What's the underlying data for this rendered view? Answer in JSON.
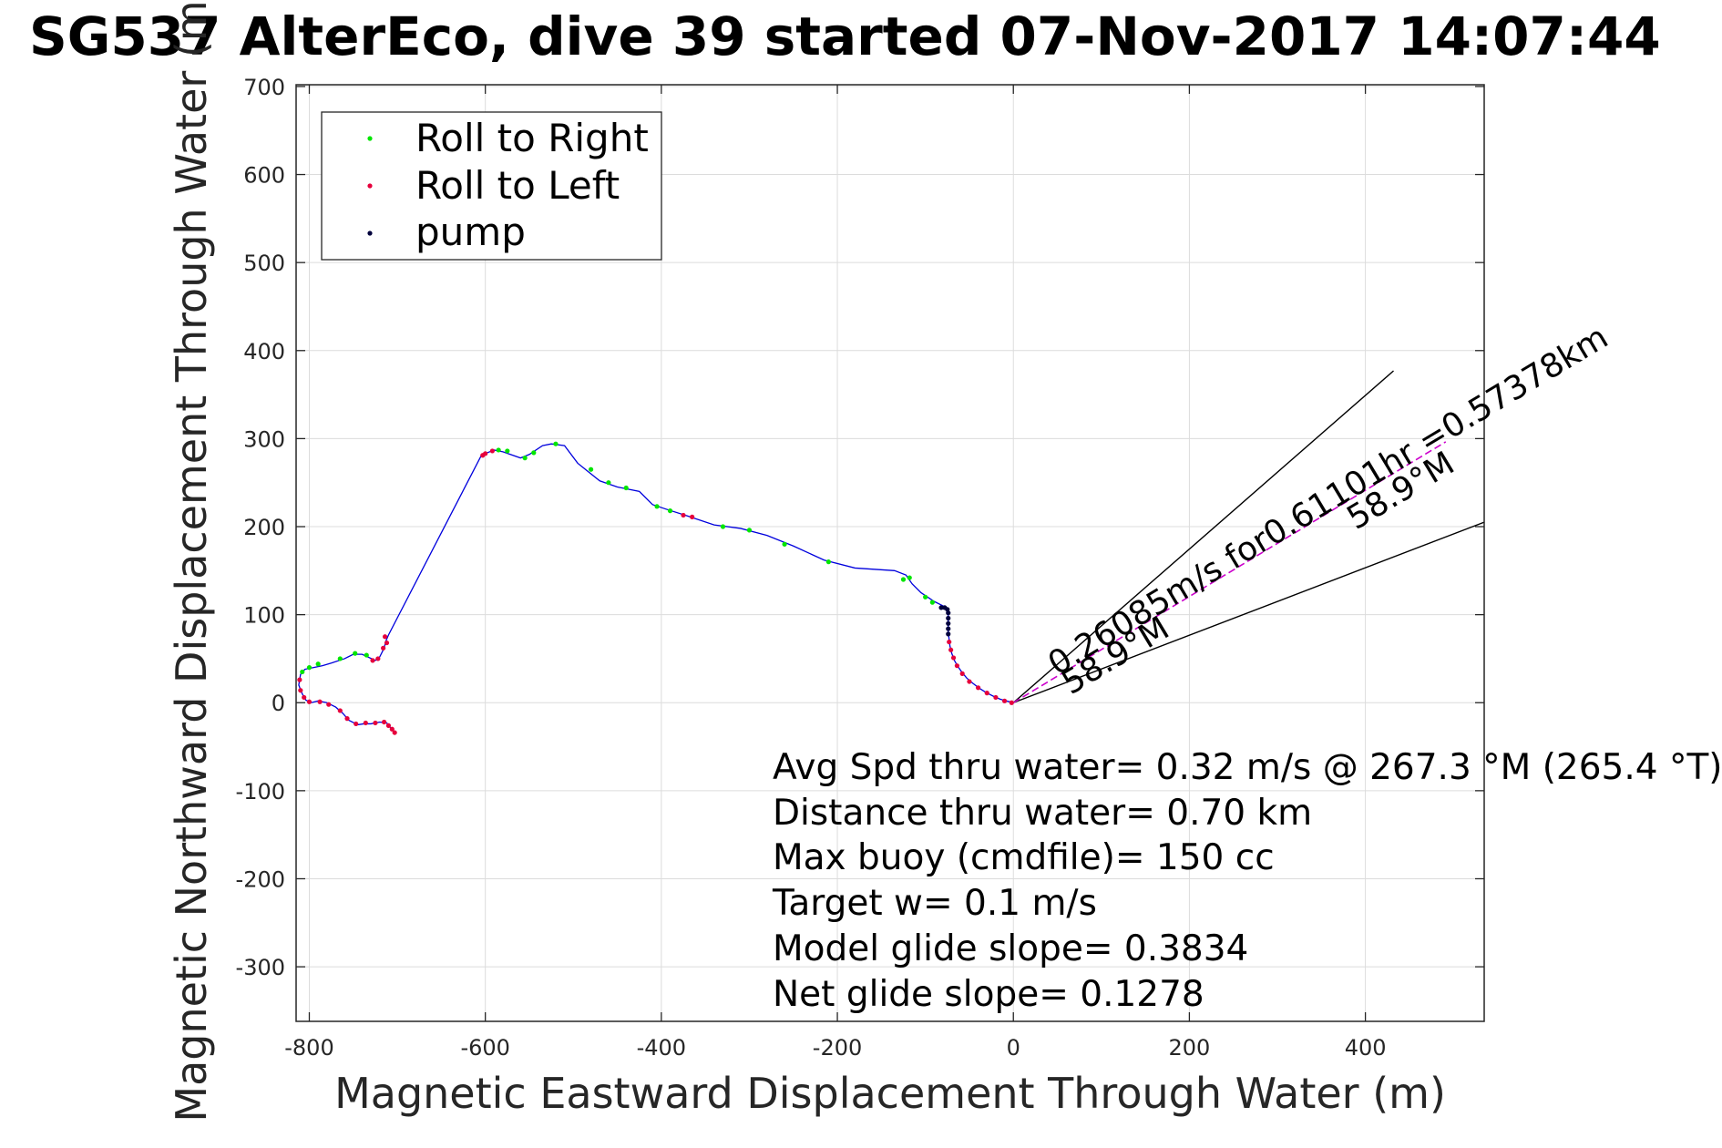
{
  "chart_data": {
    "type": "scatter",
    "title": "SG537 AlterEco, dive 39 started 07-Nov-2017 14:07:44",
    "xlabel": "Magnetic Eastward Displacement Through Water (m)",
    "ylabel": "Magnetic Northward Displacement Through Water (m)",
    "xlim": [
      -815,
      535
    ],
    "ylim": [
      -362,
      702
    ],
    "xticks": [
      -800,
      -600,
      -400,
      -200,
      0,
      200,
      400
    ],
    "yticks": [
      -300,
      -200,
      -100,
      0,
      100,
      200,
      300,
      400,
      500,
      600,
      700
    ],
    "grid": true,
    "legend": {
      "placement": "top-left",
      "entries": [
        "Roll to Right",
        "Roll to Left",
        "pump"
      ]
    },
    "colors": {
      "roll_right": "#00e600",
      "roll_left": "#e6003c",
      "pump": "#00003c",
      "track": "#0000dd",
      "bearing_line": "#cc00cc",
      "current_lines": "#000000",
      "grid": "#dcdcdc"
    },
    "track": [
      [
        0,
        0
      ],
      [
        -8,
        2
      ],
      [
        -15,
        4
      ],
      [
        -22,
        7
      ],
      [
        -30,
        11
      ],
      [
        -38,
        16
      ],
      [
        -46,
        22
      ],
      [
        -53,
        28
      ],
      [
        -58,
        34
      ],
      [
        -63,
        41
      ],
      [
        -67,
        48
      ],
      [
        -70,
        56
      ],
      [
        -72,
        64
      ],
      [
        -73,
        72
      ],
      [
        -74,
        80
      ],
      [
        -74,
        88
      ],
      [
        -74,
        96
      ],
      [
        -74,
        104
      ],
      [
        -75,
        107
      ],
      [
        -80,
        110
      ],
      [
        -90,
        115
      ],
      [
        -105,
        125
      ],
      [
        -115,
        135
      ],
      [
        -122,
        145
      ],
      [
        -135,
        150
      ],
      [
        -180,
        153
      ],
      [
        -215,
        162
      ],
      [
        -250,
        178
      ],
      [
        -280,
        190
      ],
      [
        -310,
        198
      ],
      [
        -340,
        202
      ],
      [
        -370,
        212
      ],
      [
        -395,
        220
      ],
      [
        -410,
        225
      ],
      [
        -425,
        240
      ],
      [
        -450,
        245
      ],
      [
        -470,
        252
      ],
      [
        -495,
        272
      ],
      [
        -510,
        292
      ],
      [
        -525,
        294
      ],
      [
        -535,
        292
      ],
      [
        -550,
        282
      ],
      [
        -560,
        278
      ],
      [
        -580,
        285
      ],
      [
        -590,
        287
      ],
      [
        -600,
        283
      ],
      [
        -605,
        280
      ],
      [
        -710,
        77
      ],
      [
        -713,
        70
      ],
      [
        -715,
        62
      ],
      [
        -720,
        52
      ],
      [
        -725,
        48
      ],
      [
        -740,
        55
      ],
      [
        -750,
        55
      ],
      [
        -760,
        50
      ],
      [
        -775,
        45
      ],
      [
        -785,
        42
      ],
      [
        -795,
        40
      ],
      [
        -805,
        38
      ],
      [
        -810,
        32
      ],
      [
        -812,
        20
      ],
      [
        -808,
        10
      ],
      [
        -804,
        3
      ],
      [
        -798,
        0
      ],
      [
        -790,
        2
      ],
      [
        -780,
        0
      ],
      [
        -770,
        -5
      ],
      [
        -762,
        -12
      ],
      [
        -755,
        -20
      ],
      [
        -745,
        -25
      ],
      [
        -738,
        -24
      ],
      [
        -730,
        -24
      ],
      [
        -720,
        -22
      ],
      [
        -712,
        -23
      ],
      [
        -708,
        -28
      ],
      [
        -704,
        -33
      ]
    ],
    "roll_right": [
      [
        -125,
        140
      ],
      [
        -118,
        142
      ],
      [
        -100,
        120
      ],
      [
        -92,
        114
      ],
      [
        -210,
        160
      ],
      [
        -260,
        180
      ],
      [
        -300,
        196
      ],
      [
        -330,
        200
      ],
      [
        -390,
        218
      ],
      [
        -405,
        223
      ],
      [
        -440,
        244
      ],
      [
        -460,
        250
      ],
      [
        -480,
        265
      ],
      [
        -520,
        294
      ],
      [
        -545,
        284
      ],
      [
        -555,
        278
      ],
      [
        -575,
        286
      ],
      [
        -585,
        287
      ],
      [
        -735,
        54
      ],
      [
        -748,
        56
      ],
      [
        -765,
        50
      ],
      [
        -790,
        44
      ],
      [
        -800,
        40
      ],
      [
        -808,
        35
      ]
    ],
    "roll_left": [
      [
        -2,
        0
      ],
      [
        -10,
        2
      ],
      [
        -20,
        6
      ],
      [
        -30,
        11
      ],
      [
        -40,
        17
      ],
      [
        -50,
        24
      ],
      [
        -58,
        33
      ],
      [
        -64,
        42
      ],
      [
        -68,
        51
      ],
      [
        -71,
        60
      ],
      [
        -73,
        69
      ],
      [
        -375,
        213
      ],
      [
        -365,
        211
      ],
      [
        -592,
        286
      ],
      [
        -600,
        283
      ],
      [
        -603,
        281
      ],
      [
        -712,
        68
      ],
      [
        -714,
        75
      ],
      [
        -716,
        62
      ],
      [
        -722,
        50
      ],
      [
        -728,
        48
      ],
      [
        -811,
        26
      ],
      [
        -810,
        14
      ],
      [
        -806,
        6
      ],
      [
        -800,
        1
      ],
      [
        -788,
        1
      ],
      [
        -778,
        -2
      ],
      [
        -765,
        -9
      ],
      [
        -757,
        -18
      ],
      [
        -747,
        -24
      ],
      [
        -736,
        -23
      ],
      [
        -725,
        -23
      ],
      [
        -715,
        -22
      ],
      [
        -710,
        -26
      ],
      [
        -706,
        -30
      ],
      [
        -703,
        -34
      ]
    ],
    "pump": [
      [
        -74,
        78
      ],
      [
        -74,
        84
      ],
      [
        -74,
        90
      ],
      [
        -74,
        96
      ],
      [
        -74,
        102
      ],
      [
        -75,
        106
      ],
      [
        -78,
        108
      ],
      [
        -82,
        108
      ]
    ],
    "bearing_line": {
      "label": "0.26085m/s for0.61101hr =0.57378km",
      "angle_label": "58.9°M",
      "angle_label_2": "58.9°M",
      "bearing_deg": 58.9,
      "distance_m": 573.78
    },
    "current_lines": [
      [
        [
          0,
          0
        ],
        [
          432,
          377
        ]
      ],
      [
        [
          0,
          0
        ],
        [
          535,
          205
        ]
      ]
    ],
    "annotations": [
      "Avg Spd thru water=  0.32 m/s @ 267.3 °M (265.4 °T)",
      "Distance thru water=  0.70 km",
      "Max buoy (cmdfile)= 150 cc",
      "Target w= 0.1 m/s",
      "Model glide slope= 0.3834",
      "Net glide slope= 0.1278"
    ]
  }
}
